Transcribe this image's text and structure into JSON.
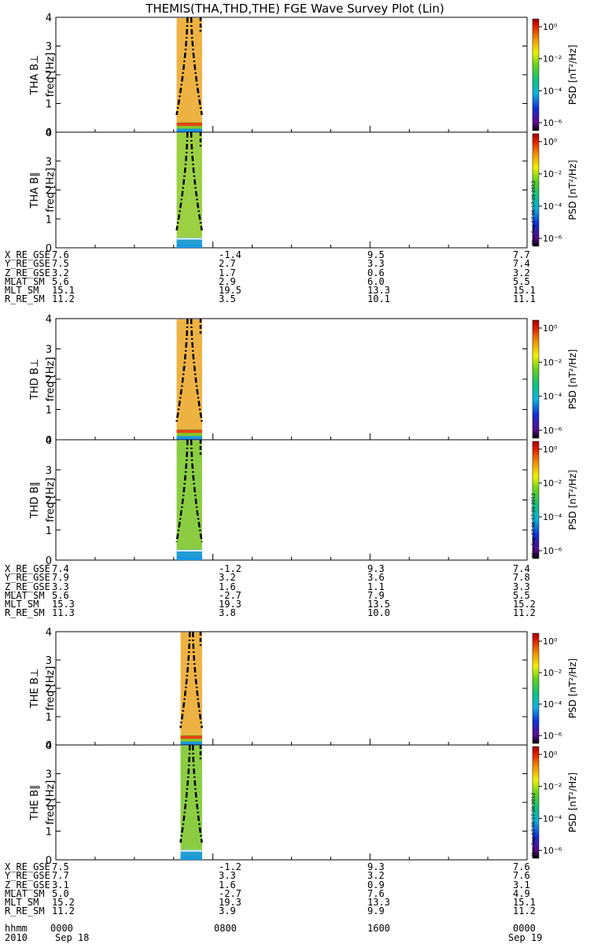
{
  "title": "THEMIS(THA,THD,THE) FGE Wave Survey Plot (Lin)",
  "colorbar": {
    "label": "PSD [nT²/Hz]",
    "ticks": [
      "10⁰",
      "10⁻²",
      "10⁻⁴",
      "10⁻⁶"
    ],
    "timestamp": "Mon Sep 17 06:17:20 2012"
  },
  "chart_data": {
    "type": "heatmap",
    "x_ticks": [
      "0000",
      "0800",
      "1600",
      "0000"
    ],
    "x_dates": [
      "Sep 18",
      "Sep 19"
    ],
    "x_range_hours": [
      0,
      24
    ],
    "y_ticks": [
      "0",
      "1",
      "2",
      "3",
      "4"
    ],
    "ylim": [
      0,
      4
    ],
    "color_scale": "log",
    "colors": {
      "hot": "#e8a020",
      "mid": "#78c828",
      "low": "#1898e0",
      "line": "#ff2010"
    },
    "panels": [
      {
        "label": "THA B⊥",
        "ylabel": "freq [Hz]",
        "data_start_hour": 6.15,
        "data_end_hour": 7.45,
        "base_color": "#f0b040",
        "curve": "dashed"
      },
      {
        "label": "THA B∥",
        "ylabel": "freq [Hz]",
        "data_start_hour": 6.15,
        "data_end_hour": 7.45,
        "base_color": "#9ad040",
        "curve": "dashed"
      },
      {
        "label": "THD B⊥",
        "ylabel": "freq [Hz]",
        "data_start_hour": 6.15,
        "data_end_hour": 7.45,
        "base_color": "#f0b040",
        "curve": "dashed"
      },
      {
        "label": "THD B∥",
        "ylabel": "freq [Hz]",
        "data_start_hour": 6.15,
        "data_end_hour": 7.45,
        "base_color": "#88cc40",
        "curve": "dashed"
      },
      {
        "label": "THE B⊥",
        "ylabel": "freq [Hz]",
        "data_start_hour": 6.35,
        "data_end_hour": 7.45,
        "base_color": "#f0b040",
        "curve": "dashed"
      },
      {
        "label": "THE B∥",
        "ylabel": "freq [Hz]",
        "data_start_hour": 6.35,
        "data_end_hour": 7.45,
        "base_color": "#88cc40",
        "curve": "dashed"
      }
    ]
  },
  "ephemeris": [
    {
      "rows": [
        {
          "name": "X_RE_GSE",
          "values": [
            "7.6",
            "-1.4",
            "9.5",
            "7.7"
          ]
        },
        {
          "name": "Y_RE_GSE",
          "values": [
            "7.5",
            "2.7",
            "3.3",
            "7.4"
          ]
        },
        {
          "name": "Z_RE_GSE",
          "values": [
            "3.2",
            "1.7",
            "0.6",
            "3.2"
          ]
        },
        {
          "name": "MLAT_SM",
          "values": [
            "5.6",
            "2.9",
            "6.0",
            "5.5"
          ]
        },
        {
          "name": "MLT_SM",
          "values": [
            "15.1",
            "19.5",
            "13.3",
            "15.1"
          ]
        },
        {
          "name": "R_RE_SM",
          "values": [
            "11.2",
            "3.5",
            "10.1",
            "11.1"
          ]
        }
      ]
    },
    {
      "rows": [
        {
          "name": "X_RE_GSE",
          "values": [
            "7.4",
            "-1.2",
            "9.3",
            "7.4"
          ]
        },
        {
          "name": "Y_RE_GSE",
          "values": [
            "7.9",
            "3.2",
            "3.6",
            "7.8"
          ]
        },
        {
          "name": "Z_RE_GSE",
          "values": [
            "3.3",
            "1.6",
            "1.1",
            "3.3"
          ]
        },
        {
          "name": "MLAT_SM",
          "values": [
            "5.6",
            "-2.7",
            "7.9",
            "5.5"
          ]
        },
        {
          "name": "MLT_SM",
          "values": [
            "15.3",
            "19.3",
            "13.5",
            "15.2"
          ]
        },
        {
          "name": "R_RE_SM",
          "values": [
            "11.3",
            "3.8",
            "10.0",
            "11.2"
          ]
        }
      ]
    },
    {
      "rows": [
        {
          "name": "X_RE_GSE",
          "values": [
            "7.5",
            "-1.2",
            "9.3",
            "7.6"
          ]
        },
        {
          "name": "Y_RE_GSE",
          "values": [
            "7.7",
            "3.3",
            "3.2",
            "7.6"
          ]
        },
        {
          "name": "Z_RE_GSE",
          "values": [
            "3.1",
            "1.6",
            "0.9",
            "3.1"
          ]
        },
        {
          "name": "MLAT_SM",
          "values": [
            "5.0",
            "-2.7",
            "7.6",
            "4.9"
          ]
        },
        {
          "name": "MLT_SM",
          "values": [
            "15.2",
            "19.3",
            "13.3",
            "15.1"
          ]
        },
        {
          "name": "R_RE_SM",
          "values": [
            "11.2",
            "3.9",
            "9.9",
            "11.2"
          ]
        }
      ]
    }
  ],
  "footer": {
    "row1_label": "hhmm",
    "row2_label": "2010"
  }
}
